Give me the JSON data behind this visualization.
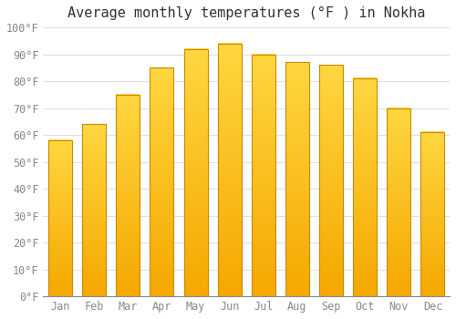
{
  "title": "Average monthly temperatures (°F ) in Nokha",
  "months": [
    "Jan",
    "Feb",
    "Mar",
    "Apr",
    "May",
    "Jun",
    "Jul",
    "Aug",
    "Sep",
    "Oct",
    "Nov",
    "Dec"
  ],
  "values": [
    58,
    64,
    75,
    85,
    92,
    94,
    90,
    87,
    86,
    81,
    70,
    61
  ],
  "bar_color_top": "#FFD740",
  "bar_color_bottom": "#F5A800",
  "bar_edge_color": "#CC8800",
  "ylim": [
    0,
    100
  ],
  "yticks": [
    0,
    10,
    20,
    30,
    40,
    50,
    60,
    70,
    80,
    90,
    100
  ],
  "ytick_labels": [
    "0°F",
    "10°F",
    "20°F",
    "30°F",
    "40°F",
    "50°F",
    "60°F",
    "70°F",
    "80°F",
    "90°F",
    "100°F"
  ],
  "background_color": "#FFFFFF",
  "grid_color": "#E0E0E0",
  "title_fontsize": 11,
  "tick_fontsize": 8.5,
  "tick_color": "#888888",
  "font_family": "monospace",
  "bar_width": 0.7
}
